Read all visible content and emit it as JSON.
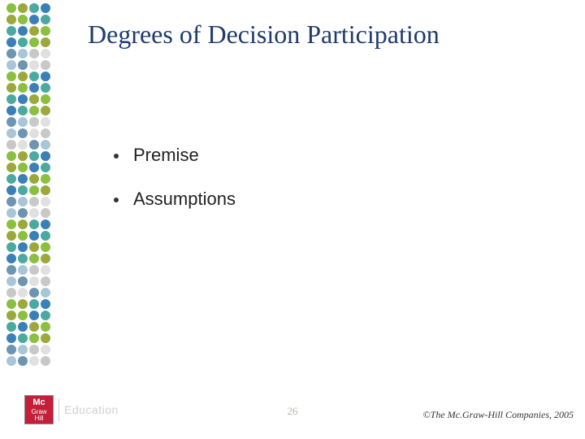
{
  "title": "Degrees of Decision Participation",
  "bullets": [
    "Premise",
    "Assumptions"
  ],
  "page_number": "26",
  "copyright": "©The Mc.Graw-Hill Companies, 2005",
  "logo": {
    "line1": "Mc",
    "line2": "Graw",
    "line3": "Hill",
    "brand_text": "Education"
  },
  "dot_colors": {
    "green": "#8bbf3f",
    "olive": "#9aa83c",
    "teal": "#4ba9a0",
    "blue": "#3a7fb5",
    "steel": "#6d94b0",
    "lightblue": "#a9c5d8",
    "gray": "#c8c8c8",
    "lightgray": "#e0e0e0"
  },
  "dot_pattern": [
    [
      "green",
      "olive",
      "teal",
      "blue"
    ],
    [
      "olive",
      "green",
      "blue",
      "teal"
    ],
    [
      "teal",
      "blue",
      "olive",
      "green"
    ],
    [
      "blue",
      "teal",
      "green",
      "olive"
    ],
    [
      "steel",
      "lightblue",
      "gray",
      "lightgray"
    ],
    [
      "lightblue",
      "steel",
      "lightgray",
      "gray"
    ],
    [
      "green",
      "olive",
      "teal",
      "blue"
    ],
    [
      "olive",
      "green",
      "blue",
      "teal"
    ],
    [
      "teal",
      "blue",
      "olive",
      "green"
    ],
    [
      "blue",
      "teal",
      "green",
      "olive"
    ],
    [
      "steel",
      "lightblue",
      "gray",
      "lightgray"
    ],
    [
      "lightblue",
      "steel",
      "lightgray",
      "gray"
    ],
    [
      "gray",
      "lightgray",
      "steel",
      "lightblue"
    ],
    [
      "green",
      "olive",
      "teal",
      "blue"
    ],
    [
      "olive",
      "green",
      "blue",
      "teal"
    ],
    [
      "teal",
      "blue",
      "olive",
      "green"
    ],
    [
      "blue",
      "teal",
      "green",
      "olive"
    ],
    [
      "steel",
      "lightblue",
      "gray",
      "lightgray"
    ],
    [
      "lightblue",
      "steel",
      "lightgray",
      "gray"
    ],
    [
      "green",
      "olive",
      "teal",
      "blue"
    ],
    [
      "olive",
      "green",
      "blue",
      "teal"
    ],
    [
      "teal",
      "blue",
      "olive",
      "green"
    ],
    [
      "blue",
      "teal",
      "green",
      "olive"
    ],
    [
      "steel",
      "lightblue",
      "gray",
      "lightgray"
    ],
    [
      "lightblue",
      "steel",
      "lightgray",
      "gray"
    ],
    [
      "gray",
      "lightgray",
      "steel",
      "lightblue"
    ],
    [
      "green",
      "olive",
      "teal",
      "blue"
    ],
    [
      "olive",
      "green",
      "blue",
      "teal"
    ],
    [
      "teal",
      "blue",
      "olive",
      "green"
    ],
    [
      "blue",
      "teal",
      "green",
      "olive"
    ],
    [
      "steel",
      "lightblue",
      "gray",
      "lightgray"
    ],
    [
      "lightblue",
      "steel",
      "lightgray",
      "gray"
    ]
  ]
}
